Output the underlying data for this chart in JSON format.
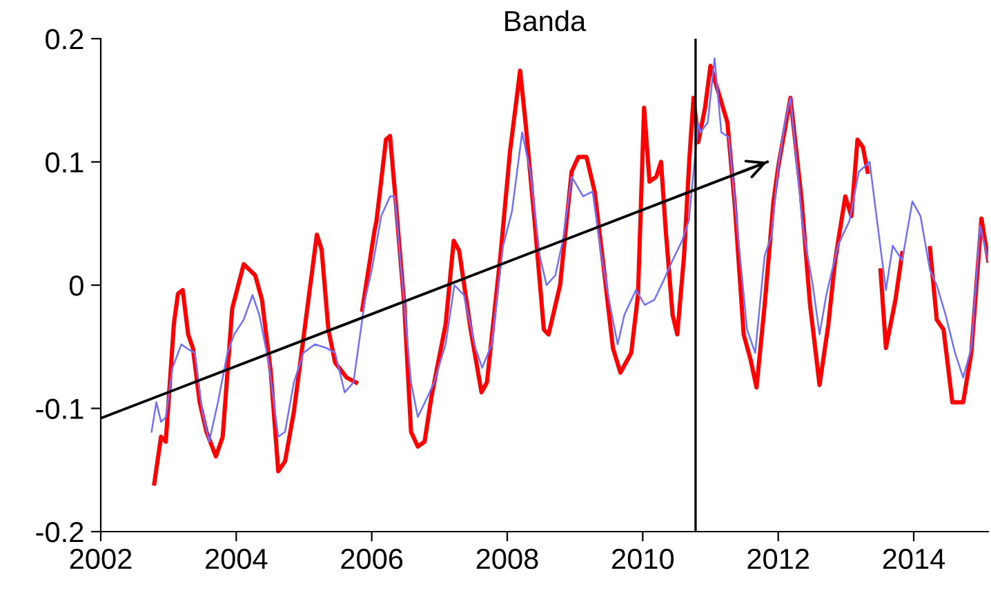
{
  "chart_data": {
    "type": "line",
    "title": "Banda",
    "xlim": [
      2002,
      2015.1
    ],
    "xticks": [
      2002,
      2004,
      2006,
      2008,
      2010,
      2012,
      2014
    ],
    "ylim": [
      -0.2,
      0.2
    ],
    "yticks": [
      {
        "value": -0.2,
        "label": "-0.2"
      },
      {
        "value": -0.1,
        "label": "-0.1"
      },
      0,
      0.1,
      0.2
    ],
    "grid": false,
    "legend": false,
    "marker": "none",
    "line_style": "solid",
    "ref_lines": [
      {
        "axis": "x",
        "value": 2010.78,
        "color": "#000000"
      }
    ],
    "series": [
      {
        "color": "#ff0000",
        "x": [
          2002.79,
          2002.89,
          2002.96,
          2003.08,
          2003.14,
          2003.21,
          2003.29,
          2003.36,
          2003.46,
          2003.56,
          2003.7,
          2003.8,
          2003.94,
          2004.11,
          2004.28,
          2004.38,
          2004.51,
          2004.62,
          2004.72,
          2004.85,
          2005.02,
          2005.19,
          2005.26,
          2005.36,
          2005.46,
          2005.63,
          2005.77,
          2005.81,
          2005.86,
          2006.04,
          2006.07,
          2006.21,
          2006.27,
          2006.34,
          2006.48,
          2006.58,
          2006.68,
          2006.78,
          2006.88,
          2007.09,
          2007.21,
          2007.29,
          2007.46,
          2007.62,
          2007.7,
          2007.9,
          2008.04,
          2008.19,
          2008.27,
          2008.41,
          2008.54,
          2008.61,
          2008.78,
          2008.95,
          2009.05,
          2009.17,
          2009.29,
          2009.42,
          2009.56,
          2009.67,
          2009.83,
          2009.93,
          2010.02,
          2010.1,
          2010.2,
          2010.27,
          2010.34,
          2010.44,
          2010.51,
          2010.61,
          2010.69,
          2010.75,
          2010.82,
          2010.92,
          2011.0,
          2011.12,
          2011.25,
          2011.36,
          2011.49,
          2011.59,
          2011.68,
          2011.8,
          2011.93,
          2012.0,
          2012.18,
          2012.34,
          2012.47,
          2012.61,
          2012.74,
          2012.84,
          2012.99,
          2013.08,
          2013.17,
          2013.25,
          2013.32,
          2013.42,
          2013.51,
          2013.59,
          2013.73,
          2013.83,
          2014.03,
          2014.24,
          2014.34,
          2014.44,
          2014.57,
          2014.73,
          2014.85,
          2015.0,
          2015.1
        ],
        "values": [
          -0.161,
          -0.123,
          -0.127,
          -0.031,
          -0.007,
          -0.004,
          -0.04,
          -0.051,
          -0.095,
          -0.119,
          -0.139,
          -0.123,
          -0.019,
          0.017,
          0.008,
          -0.012,
          -0.071,
          -0.151,
          -0.143,
          -0.103,
          -0.031,
          0.041,
          0.029,
          -0.036,
          -0.063,
          -0.075,
          -0.079,
          null,
          -0.02,
          0.044,
          0.052,
          0.118,
          0.121,
          0.077,
          -0.016,
          -0.119,
          -0.131,
          -0.127,
          -0.091,
          -0.032,
          0.036,
          0.028,
          -0.036,
          -0.087,
          -0.079,
          0.024,
          0.108,
          0.174,
          0.132,
          0.048,
          -0.036,
          -0.04,
          0.0,
          0.092,
          0.104,
          0.104,
          0.076,
          0.016,
          -0.051,
          -0.071,
          -0.055,
          -0.008,
          0.144,
          0.084,
          0.088,
          0.1,
          0.044,
          -0.024,
          -0.04,
          0.024,
          0.104,
          0.152,
          0.116,
          0.144,
          0.178,
          0.156,
          0.132,
          0.064,
          -0.04,
          -0.06,
          -0.083,
          -0.016,
          0.068,
          0.096,
          0.152,
          0.072,
          -0.016,
          -0.081,
          -0.032,
          0.02,
          0.072,
          0.056,
          0.118,
          0.112,
          0.092,
          null,
          0.012,
          -0.051,
          -0.012,
          0.026,
          null,
          0.03,
          -0.028,
          -0.036,
          -0.095,
          -0.095,
          -0.055,
          0.054,
          0.02
        ]
      },
      {
        "color": "#7070ff",
        "x": [
          2002.75,
          2002.82,
          2002.89,
          2002.96,
          2003.06,
          2003.19,
          2003.29,
          2003.39,
          2003.5,
          2003.6,
          2003.73,
          2003.87,
          2003.97,
          2004.11,
          2004.24,
          2004.34,
          2004.48,
          2004.62,
          2004.72,
          2004.85,
          2004.99,
          2005.16,
          2005.33,
          2005.46,
          2005.6,
          2005.73,
          2005.9,
          2006.0,
          2006.14,
          2006.27,
          2006.34,
          2006.48,
          2006.58,
          2006.68,
          2006.82,
          2006.92,
          2007.09,
          2007.22,
          2007.36,
          2007.53,
          2007.63,
          2007.77,
          2007.94,
          2008.07,
          2008.22,
          2008.34,
          2008.48,
          2008.58,
          2008.71,
          2008.82,
          2008.95,
          2009.12,
          2009.26,
          2009.39,
          2009.53,
          2009.63,
          2009.73,
          2009.9,
          2010.03,
          2010.17,
          2010.31,
          2010.44,
          2010.58,
          2010.68,
          2010.82,
          2010.85,
          2010.96,
          2011.06,
          2011.16,
          2011.27,
          2011.4,
          2011.54,
          2011.66,
          2011.8,
          2011.9,
          2012.0,
          2012.1,
          2012.18,
          2012.37,
          2012.51,
          2012.61,
          2012.71,
          2012.88,
          2013.05,
          2013.19,
          2013.35,
          2013.45,
          2013.59,
          2013.69,
          2013.83,
          2013.98,
          2014.1,
          2014.24,
          2014.34,
          2014.47,
          2014.61,
          2014.73,
          2014.85,
          2014.98,
          2015.1
        ],
        "values": [
          -0.119,
          -0.095,
          -0.111,
          -0.107,
          -0.067,
          -0.048,
          -0.052,
          -0.055,
          -0.103,
          -0.127,
          -0.095,
          -0.055,
          -0.04,
          -0.028,
          -0.008,
          -0.024,
          -0.063,
          -0.123,
          -0.119,
          -0.079,
          -0.055,
          -0.048,
          -0.051,
          -0.055,
          -0.087,
          -0.079,
          -0.012,
          0.012,
          0.056,
          0.072,
          0.072,
          -0.016,
          -0.079,
          -0.107,
          -0.091,
          -0.079,
          -0.048,
          0.0,
          -0.008,
          -0.051,
          -0.067,
          -0.048,
          0.032,
          0.06,
          0.124,
          0.092,
          0.024,
          0.0,
          0.008,
          0.036,
          0.088,
          0.072,
          0.076,
          0.024,
          -0.02,
          -0.048,
          -0.024,
          -0.004,
          -0.016,
          -0.012,
          0.004,
          0.02,
          0.036,
          0.052,
          0.132,
          0.124,
          0.132,
          0.184,
          0.124,
          0.12,
          0.044,
          -0.036,
          -0.055,
          0.024,
          0.04,
          0.096,
          0.132,
          0.152,
          0.044,
          0.0,
          -0.04,
          -0.008,
          0.032,
          0.052,
          0.092,
          0.1,
          0.056,
          -0.004,
          0.032,
          0.02,
          0.068,
          0.056,
          0.012,
          0.0,
          -0.024,
          -0.055,
          -0.075,
          -0.051,
          0.048,
          0.02
        ]
      },
      {
        "color": "#000000",
        "x": [
          2002,
          2011.84
        ],
        "values": [
          -0.108,
          0.1
        ]
      }
    ]
  }
}
